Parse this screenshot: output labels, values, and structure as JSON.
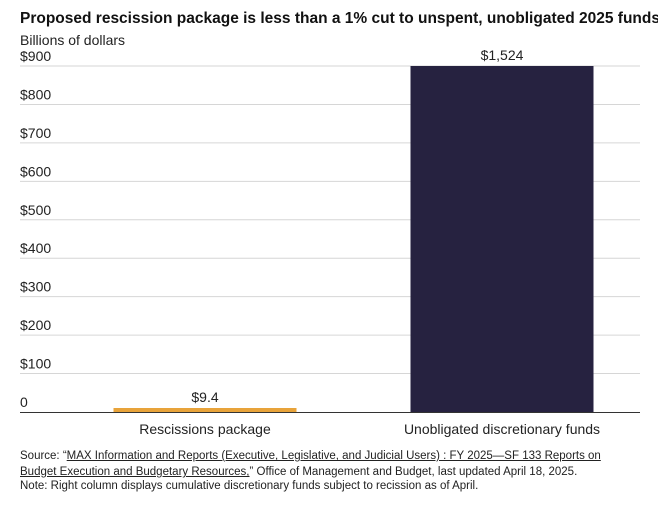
{
  "title": "Proposed rescission package is less than a 1% cut to unspent, unobligated 2025 funds",
  "subtitle": "Billions of dollars",
  "chart_data": {
    "type": "bar",
    "title": "Proposed rescission package is less than a 1% cut to unspent, unobligated 2025 funds",
    "ylabel": "Billions of dollars",
    "xlabel": "",
    "categories": [
      "Rescissions package",
      "Unobligated discretionary funds"
    ],
    "values": [
      9.4,
      1524
    ],
    "data_labels": [
      "$9.4",
      "$1,524"
    ],
    "colors": [
      "#e8a33a",
      "#262240"
    ],
    "ylim": [
      0,
      900
    ],
    "yticks": [
      0,
      100,
      200,
      300,
      400,
      500,
      600,
      700,
      800,
      900
    ],
    "ytick_labels": [
      "0",
      "$100",
      "$200",
      "$300",
      "$400",
      "$500",
      "$600",
      "$700",
      "$800",
      "$900"
    ],
    "grid": true,
    "note": "Second bar is truncated at the top of the axis"
  },
  "source": {
    "prefix": "Source: “",
    "link_text": "MAX Information and Reports (Executive, Legislative, and Judicial Users) : FY 2025—SF 133 Reports on Budget Execution and Budgetary Resources,",
    "suffix": "” Office of Management and Budget, last updated April 18, 2025."
  },
  "note_text": "Note: Right column displays cumulative discretionary funds subject to recission as of April."
}
